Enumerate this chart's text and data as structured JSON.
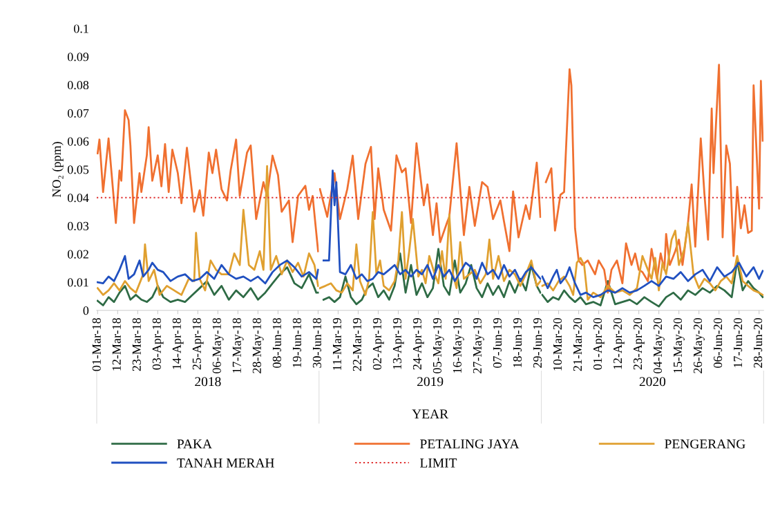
{
  "chart_data": [
    {
      "type": "line",
      "xlabel": "2018",
      "ylabel": "NO₂ (ppm)",
      "legend": "bottom",
      "grid": false,
      "xlim": [
        "2018-02-28T12:00",
        "2018-06-30T12:00"
      ],
      "ylim": [
        0,
        0.1
      ],
      "yticks": [
        0,
        0.01,
        0.02,
        0.03,
        0.04,
        0.05,
        0.06,
        0.07,
        0.08,
        0.09,
        0.1
      ],
      "xticks": [
        {
          "value": "2018-03-01",
          "label": "01-Mar-18"
        },
        {
          "value": "2018-03-12",
          "label": "12-Mar-18"
        },
        {
          "value": "2018-03-23",
          "label": "23-Mar-18"
        },
        {
          "value": "2018-04-03",
          "label": "03-Apr-18"
        },
        {
          "value": "2018-04-14",
          "label": "14-Apr-18"
        },
        {
          "value": "2018-04-25",
          "label": "25-Apr-18"
        },
        {
          "value": "2018-05-06",
          "label": "06-May-18"
        },
        {
          "value": "2018-05-17",
          "label": "17-May-18"
        },
        {
          "value": "2018-05-28",
          "label": "28-May-18"
        },
        {
          "value": "2018-06-08",
          "label": "08-Jun-18"
        },
        {
          "value": "2018-06-19",
          "label": "19-Jun-18"
        },
        {
          "value": "2018-06-30",
          "label": "30-Jun-18"
        }
      ],
      "ref_lines": [
        {
          "axis": "y",
          "value": 0.04,
          "label": "LIMIT",
          "color": "#e03030",
          "line_style": "dotted"
        }
      ],
      "series": [
        {
          "name": "PAKA",
          "color": "#2e6b45",
          "x": [
            "2018-03-01",
            "2018-03-04",
            "2018-03-07",
            "2018-03-10",
            "2018-03-13",
            "2018-03-16",
            "2018-03-19",
            "2018-03-22",
            "2018-03-25",
            "2018-03-28",
            "2018-03-31",
            "2018-04-03",
            "2018-04-06",
            "2018-04-10",
            "2018-04-14",
            "2018-04-18",
            "2018-04-22",
            "2018-04-26",
            "2018-04-30",
            "2018-05-04",
            "2018-05-08",
            "2018-05-12",
            "2018-05-16",
            "2018-05-20",
            "2018-05-24",
            "2018-05-28",
            "2018-06-01",
            "2018-06-05",
            "2018-06-09",
            "2018-06-13",
            "2018-06-17",
            "2018-06-21",
            "2018-06-25",
            "2018-06-29",
            "2018-06-30"
          ],
          "values": [
            0.0034,
            0.0018,
            0.0047,
            0.003,
            0.0063,
            0.0087,
            0.0038,
            0.0055,
            0.0038,
            0.003,
            0.0047,
            0.0087,
            0.0047,
            0.003,
            0.0038,
            0.003,
            0.0055,
            0.0079,
            0.0104,
            0.0055,
            0.0087,
            0.0038,
            0.0071,
            0.0047,
            0.0079,
            0.0038,
            0.0063,
            0.0096,
            0.0128,
            0.0153,
            0.0096,
            0.0079,
            0.0128,
            0.0063,
            0.0063
          ]
        },
        {
          "name": "PETALING JAYA",
          "color": "#f07030",
          "x": [
            "2018-03-01",
            "2018-03-02",
            "2018-03-04",
            "2018-03-07",
            "2018-03-11",
            "2018-03-13",
            "2018-03-14",
            "2018-03-16",
            "2018-03-18",
            "2018-03-19",
            "2018-03-21",
            "2018-03-24",
            "2018-03-25",
            "2018-03-28",
            "2018-03-29",
            "2018-03-31",
            "2018-04-03",
            "2018-04-05",
            "2018-04-07",
            "2018-04-09",
            "2018-04-11",
            "2018-04-14",
            "2018-04-16",
            "2018-04-19",
            "2018-04-23",
            "2018-04-26",
            "2018-04-28",
            "2018-05-01",
            "2018-05-03",
            "2018-05-05",
            "2018-05-08",
            "2018-05-11",
            "2018-05-13",
            "2018-05-16",
            "2018-05-18",
            "2018-05-22",
            "2018-05-24",
            "2018-05-27",
            "2018-05-28",
            "2018-05-31",
            "2018-06-02",
            "2018-06-05",
            "2018-06-08",
            "2018-06-10",
            "2018-06-14",
            "2018-06-16",
            "2018-06-19",
            "2018-06-23",
            "2018-06-25",
            "2018-06-27",
            "2018-06-30"
          ],
          "values": [
            0.0557,
            0.0606,
            0.042,
            0.061,
            0.031,
            0.0496,
            0.046,
            0.071,
            0.0675,
            0.0585,
            0.031,
            0.0487,
            0.042,
            0.055,
            0.065,
            0.046,
            0.055,
            0.044,
            0.059,
            0.042,
            0.057,
            0.0487,
            0.038,
            0.0577,
            0.035,
            0.0426,
            0.0336,
            0.056,
            0.0487,
            0.057,
            0.043,
            0.039,
            0.0496,
            0.0606,
            0.0406,
            0.056,
            0.0585,
            0.0324,
            0.0357,
            0.0455,
            0.0406,
            0.0549,
            0.048,
            0.035,
            0.039,
            0.0242,
            0.0406,
            0.0442,
            0.0357,
            0.0406,
            0.021
          ]
        },
        {
          "name": "PENGERANG",
          "color": "#e0a030",
          "x": [
            "2018-03-01",
            "2018-03-04",
            "2018-03-07",
            "2018-03-10",
            "2018-03-13",
            "2018-03-16",
            "2018-03-19",
            "2018-03-22",
            "2018-03-26",
            "2018-03-27",
            "2018-03-29",
            "2018-04-01",
            "2018-04-04",
            "2018-04-08",
            "2018-04-12",
            "2018-04-16",
            "2018-04-20",
            "2018-04-23",
            "2018-04-24",
            "2018-04-26",
            "2018-04-29",
            "2018-05-02",
            "2018-05-05",
            "2018-05-08",
            "2018-05-12",
            "2018-05-15",
            "2018-05-18",
            "2018-05-20",
            "2018-05-23",
            "2018-05-26",
            "2018-05-29",
            "2018-05-31",
            "2018-06-02",
            "2018-06-04",
            "2018-06-07",
            "2018-06-10",
            "2018-06-13",
            "2018-06-16",
            "2018-06-19",
            "2018-06-22",
            "2018-06-25",
            "2018-06-28",
            "2018-06-30"
          ],
          "values": [
            0.0079,
            0.0055,
            0.0071,
            0.0096,
            0.0071,
            0.0104,
            0.0079,
            0.0063,
            0.0128,
            0.0234,
            0.0104,
            0.0144,
            0.0055,
            0.0087,
            0.0071,
            0.0055,
            0.0112,
            0.0104,
            0.0275,
            0.0112,
            0.0071,
            0.0177,
            0.0144,
            0.0128,
            0.0128,
            0.0202,
            0.0161,
            0.0357,
            0.0161,
            0.0144,
            0.021,
            0.0144,
            0.0512,
            0.0144,
            0.0193,
            0.0128,
            0.0177,
            0.0136,
            0.0169,
            0.012,
            0.0202,
            0.0161,
            0.0087
          ]
        },
        {
          "name": "TANAH MERAH",
          "color": "#2050c0",
          "x": [
            "2018-03-01",
            "2018-03-04",
            "2018-03-07",
            "2018-03-10",
            "2018-03-13",
            "2018-03-16",
            "2018-03-18",
            "2018-03-21",
            "2018-03-24",
            "2018-03-26",
            "2018-03-29",
            "2018-03-31",
            "2018-04-03",
            "2018-04-06",
            "2018-04-10",
            "2018-04-14",
            "2018-04-18",
            "2018-04-22",
            "2018-04-26",
            "2018-04-30",
            "2018-05-04",
            "2018-05-08",
            "2018-05-12",
            "2018-05-16",
            "2018-05-20",
            "2018-05-24",
            "2018-05-28",
            "2018-06-01",
            "2018-06-05",
            "2018-06-09",
            "2018-06-13",
            "2018-06-17",
            "2018-06-21",
            "2018-06-25",
            "2018-06-29",
            "2018-06-30"
          ],
          "values": [
            0.01,
            0.0096,
            0.012,
            0.0104,
            0.0144,
            0.0193,
            0.0112,
            0.0128,
            0.0177,
            0.012,
            0.0144,
            0.0169,
            0.0144,
            0.0136,
            0.0104,
            0.012,
            0.0128,
            0.0104,
            0.0112,
            0.0136,
            0.0112,
            0.0161,
            0.0128,
            0.0112,
            0.012,
            0.0104,
            0.012,
            0.0096,
            0.0136,
            0.0161,
            0.0177,
            0.0153,
            0.012,
            0.0136,
            0.0112,
            0.0144
          ]
        }
      ]
    },
    {
      "type": "line",
      "xlabel": "2019",
      "tick_labels": "x",
      "grid": false,
      "annotations": [
        "YEAR"
      ],
      "xlim": [
        "2019-02-28T12:00",
        "2019-06-30T12:00"
      ],
      "ylim": [
        0,
        0.1
      ],
      "xticks": [
        {
          "value": "2019-03-11",
          "label": "11-Mar-19"
        },
        {
          "value": "2019-03-22",
          "label": "22-Mar-19"
        },
        {
          "value": "2019-04-02",
          "label": "02-Apr-19"
        },
        {
          "value": "2019-04-13",
          "label": "13-Apr-19"
        },
        {
          "value": "2019-04-24",
          "label": "24-Apr-19"
        },
        {
          "value": "2019-05-05",
          "label": "05-May-19"
        },
        {
          "value": "2019-05-16",
          "label": "16-May-19"
        },
        {
          "value": "2019-05-27",
          "label": "27-May-19"
        },
        {
          "value": "2019-06-07",
          "label": "07-Jun-19"
        },
        {
          "value": "2019-06-18",
          "label": "18-Jun-19"
        },
        {
          "value": "2019-06-29",
          "label": "29-Jun-19"
        }
      ],
      "ref_lines": [
        {
          "axis": "y",
          "value": 0.04,
          "color": "#e03030",
          "line_style": "dotted"
        }
      ],
      "series": [
        {
          "color": "#2e6b45",
          "x": [
            "2019-03-03",
            "2019-03-06",
            "2019-03-09",
            "2019-03-12",
            "2019-03-15",
            "2019-03-18",
            "2019-03-21",
            "2019-03-24",
            "2019-03-27",
            "2019-03-30",
            "2019-04-02",
            "2019-04-05",
            "2019-04-08",
            "2019-04-11",
            "2019-04-14",
            "2019-04-17",
            "2019-04-20",
            "2019-04-23",
            "2019-04-26",
            "2019-04-29",
            "2019-05-02",
            "2019-05-05",
            "2019-05-08",
            "2019-05-11",
            "2019-05-14",
            "2019-05-17",
            "2019-05-20",
            "2019-05-23",
            "2019-05-26",
            "2019-05-29",
            "2019-06-01",
            "2019-06-04",
            "2019-06-07",
            "2019-06-10",
            "2019-06-13",
            "2019-06-16",
            "2019-06-19",
            "2019-06-22",
            "2019-06-25",
            "2019-06-28",
            "2019-06-30"
          ],
          "values": [
            0.0038,
            0.0047,
            0.003,
            0.0047,
            0.012,
            0.0047,
            0.0022,
            0.0038,
            0.0079,
            0.0096,
            0.0047,
            0.0071,
            0.0038,
            0.0087,
            0.0202,
            0.0063,
            0.0161,
            0.0055,
            0.0096,
            0.0047,
            0.0079,
            0.0218,
            0.0087,
            0.0055,
            0.0177,
            0.0063,
            0.0096,
            0.0161,
            0.0079,
            0.0047,
            0.0096,
            0.0055,
            0.0087,
            0.0047,
            0.0104,
            0.0063,
            0.0112,
            0.0071,
            0.0161,
            0.0087,
            0.0063
          ]
        },
        {
          "color": "#f07030",
          "x": [
            "2019-03-01",
            "2019-03-05",
            "2019-03-09",
            "2019-03-12",
            "2019-03-16",
            "2019-03-19",
            "2019-03-22",
            "2019-03-26",
            "2019-03-29",
            "2019-03-31",
            "2019-04-02",
            "2019-04-05",
            "2019-04-09",
            "2019-04-12",
            "2019-04-15",
            "2019-04-17",
            "2019-04-20",
            "2019-04-23",
            "2019-04-27",
            "2019-04-29",
            "2019-05-02",
            "2019-05-04",
            "2019-05-06",
            "2019-05-10",
            "2019-05-11",
            "2019-05-15",
            "2019-05-19",
            "2019-05-22",
            "2019-05-25",
            "2019-05-29",
            "2019-06-01",
            "2019-06-04",
            "2019-06-08",
            "2019-06-10",
            "2019-06-13",
            "2019-06-15",
            "2019-06-18",
            "2019-06-22",
            "2019-06-24",
            "2019-06-28",
            "2019-06-30"
          ],
          "values": [
            0.043,
            0.0332,
            0.0487,
            0.0324,
            0.043,
            0.0549,
            0.0324,
            0.052,
            0.058,
            0.0324,
            0.0504,
            0.0357,
            0.0283,
            0.055,
            0.049,
            0.0504,
            0.031,
            0.0593,
            0.0373,
            0.0447,
            0.0267,
            0.038,
            0.0242,
            0.0316,
            0.0332,
            0.0593,
            0.0267,
            0.0438,
            0.03,
            0.0455,
            0.0438,
            0.0324,
            0.039,
            0.0316,
            0.021,
            0.0422,
            0.0259,
            0.0373,
            0.0324,
            0.0524,
            0.0332
          ]
        },
        {
          "color": "#e0a030",
          "x": [
            "2019-03-01",
            "2019-03-04",
            "2019-03-07",
            "2019-03-10",
            "2019-03-13",
            "2019-03-16",
            "2019-03-19",
            "2019-03-21",
            "2019-03-23",
            "2019-03-26",
            "2019-03-28",
            "2019-03-30",
            "2019-04-01",
            "2019-04-03",
            "2019-04-05",
            "2019-04-08",
            "2019-04-11",
            "2019-04-13",
            "2019-04-15",
            "2019-04-17",
            "2019-04-19",
            "2019-04-21",
            "2019-04-24",
            "2019-04-26",
            "2019-04-28",
            "2019-04-30",
            "2019-05-03",
            "2019-05-05",
            "2019-05-07",
            "2019-05-09",
            "2019-05-11",
            "2019-05-13",
            "2019-05-15",
            "2019-05-17",
            "2019-05-19",
            "2019-05-22",
            "2019-05-25",
            "2019-05-28",
            "2019-05-31",
            "2019-06-02",
            "2019-06-04",
            "2019-06-07",
            "2019-06-10",
            "2019-06-13",
            "2019-06-16",
            "2019-06-19",
            "2019-06-22",
            "2019-06-25",
            "2019-06-28",
            "2019-06-30"
          ],
          "values": [
            0.0079,
            0.0087,
            0.0096,
            0.0071,
            0.0063,
            0.0096,
            0.0071,
            0.0234,
            0.0104,
            0.0055,
            0.0112,
            0.0349,
            0.0128,
            0.0177,
            0.0087,
            0.0071,
            0.0104,
            0.0177,
            0.0349,
            0.0112,
            0.021,
            0.0324,
            0.012,
            0.0144,
            0.0096,
            0.0193,
            0.0128,
            0.0096,
            0.021,
            0.0112,
            0.034,
            0.0128,
            0.0079,
            0.0242,
            0.0112,
            0.0128,
            0.0144,
            0.0096,
            0.0128,
            0.0251,
            0.0112,
            0.0193,
            0.0104,
            0.0144,
            0.0128,
            0.0087,
            0.0128,
            0.0177,
            0.0087,
            0.0104
          ]
        },
        {
          "color": "#2050c0",
          "x": [
            "2019-03-03",
            "2019-03-06",
            "2019-03-08",
            "2019-03-09",
            "2019-03-10",
            "2019-03-12",
            "2019-03-15",
            "2019-03-18",
            "2019-03-21",
            "2019-03-24",
            "2019-03-27",
            "2019-03-30",
            "2019-04-02",
            "2019-04-05",
            "2019-04-08",
            "2019-04-11",
            "2019-04-14",
            "2019-04-17",
            "2019-04-20",
            "2019-04-23",
            "2019-04-26",
            "2019-04-29",
            "2019-05-02",
            "2019-05-05",
            "2019-05-08",
            "2019-05-11",
            "2019-05-14",
            "2019-05-17",
            "2019-05-20",
            "2019-05-23",
            "2019-05-26",
            "2019-05-29",
            "2019-06-01",
            "2019-06-04",
            "2019-06-07",
            "2019-06-10",
            "2019-06-13",
            "2019-06-16",
            "2019-06-19",
            "2019-06-22",
            "2019-06-25",
            "2019-06-28",
            "2019-06-30"
          ],
          "values": [
            0.0177,
            0.0177,
            0.0496,
            0.0373,
            0.0455,
            0.0136,
            0.0128,
            0.0161,
            0.0112,
            0.0128,
            0.0104,
            0.0112,
            0.0136,
            0.0128,
            0.0144,
            0.0161,
            0.0128,
            0.0144,
            0.012,
            0.0144,
            0.0128,
            0.0161,
            0.0112,
            0.0161,
            0.012,
            0.0144,
            0.0104,
            0.0136,
            0.0169,
            0.0153,
            0.0112,
            0.0169,
            0.0128,
            0.0144,
            0.0112,
            0.0161,
            0.012,
            0.0144,
            0.0104,
            0.0136,
            0.0153,
            0.0128,
            0.0112
          ]
        }
      ]
    },
    {
      "type": "line",
      "xlabel": "2020",
      "tick_labels": "x",
      "grid": false,
      "xlim": [
        "2020-02-29T12:00",
        "2020-06-30T12:00"
      ],
      "ylim": [
        0,
        0.1
      ],
      "xticks": [
        {
          "value": "2020-03-10",
          "label": "10-Mar-20"
        },
        {
          "value": "2020-03-21",
          "label": "21-Mar-20"
        },
        {
          "value": "2020-04-01",
          "label": "01-Apr-20"
        },
        {
          "value": "2020-04-12",
          "label": "12-Apr-20"
        },
        {
          "value": "2020-04-23",
          "label": "23-Apr-20"
        },
        {
          "value": "2020-05-04",
          "label": "04-May-20"
        },
        {
          "value": "2020-05-15",
          "label": "15-May-20"
        },
        {
          "value": "2020-05-26",
          "label": "26-May-20"
        },
        {
          "value": "2020-06-06",
          "label": "06-Jun-20"
        },
        {
          "value": "2020-06-17",
          "label": "17-Jun-20"
        },
        {
          "value": "2020-06-28",
          "label": "28-Jun-20"
        }
      ],
      "ref_lines": [
        {
          "axis": "y",
          "value": 0.04,
          "color": "#e03030",
          "line_style": "dotted"
        }
      ],
      "series": [
        {
          "color": "#2e6b45",
          "x": [
            "2020-03-01",
            "2020-03-04",
            "2020-03-07",
            "2020-03-10",
            "2020-03-13",
            "2020-03-16",
            "2020-03-19",
            "2020-03-22",
            "2020-03-25",
            "2020-03-29",
            "2020-04-02",
            "2020-04-06",
            "2020-04-10",
            "2020-04-14",
            "2020-04-18",
            "2020-04-22",
            "2020-04-26",
            "2020-04-30",
            "2020-05-04",
            "2020-05-08",
            "2020-05-12",
            "2020-05-16",
            "2020-05-20",
            "2020-05-24",
            "2020-05-28",
            "2020-06-01",
            "2020-06-05",
            "2020-06-09",
            "2020-06-13",
            "2020-06-16",
            "2020-06-19",
            "2020-06-22",
            "2020-06-25",
            "2020-06-28",
            "2020-06-30"
          ],
          "values": [
            0.0055,
            0.003,
            0.0047,
            0.0038,
            0.0071,
            0.0047,
            0.003,
            0.0047,
            0.0022,
            0.003,
            0.0018,
            0.0104,
            0.0022,
            0.003,
            0.0038,
            0.0022,
            0.0047,
            0.003,
            0.0014,
            0.0047,
            0.0063,
            0.0038,
            0.0071,
            0.0055,
            0.0079,
            0.0063,
            0.0087,
            0.0071,
            0.0047,
            0.0177,
            0.0071,
            0.0104,
            0.0079,
            0.0063,
            0.0047
          ]
        },
        {
          "color": "#f07030",
          "x": [
            "2020-03-03",
            "2020-03-06",
            "2020-03-08",
            "2020-03-11",
            "2020-03-13",
            "2020-03-16",
            "2020-03-17",
            "2020-03-19",
            "2020-03-21",
            "2020-03-23",
            "2020-03-26",
            "2020-03-30",
            "2020-04-01",
            "2020-04-04",
            "2020-04-06",
            "2020-04-08",
            "2020-04-11",
            "2020-04-14",
            "2020-04-16",
            "2020-04-19",
            "2020-04-21",
            "2020-04-23",
            "2020-04-25",
            "2020-04-28",
            "2020-04-30",
            "2020-05-03",
            "2020-05-05",
            "2020-05-07",
            "2020-05-08",
            "2020-05-10",
            "2020-05-13",
            "2020-05-15",
            "2020-05-17",
            "2020-05-20",
            "2020-05-22",
            "2020-05-24",
            "2020-05-27",
            "2020-05-29",
            "2020-05-31",
            "2020-06-02",
            "2020-06-03",
            "2020-06-06",
            "2020-06-08",
            "2020-06-10",
            "2020-06-12",
            "2020-06-14",
            "2020-06-16",
            "2020-06-18",
            "2020-06-20",
            "2020-06-22",
            "2020-06-24",
            "2020-06-25",
            "2020-06-28",
            "2020-06-29",
            "2020-06-30"
          ],
          "values": [
            0.0455,
            0.0504,
            0.0283,
            0.041,
            0.042,
            0.0855,
            0.0798,
            0.0291,
            0.0177,
            0.0161,
            0.0177,
            0.0128,
            0.0177,
            0.0144,
            0.0063,
            0.0144,
            0.0177,
            0.0096,
            0.0238,
            0.0161,
            0.0202,
            0.0144,
            0.0136,
            0.0104,
            0.0218,
            0.0112,
            0.0202,
            0.0144,
            0.0271,
            0.0161,
            0.021,
            0.0251,
            0.0161,
            0.031,
            0.0447,
            0.0226,
            0.061,
            0.0414,
            0.0251,
            0.0716,
            0.0487,
            0.0871,
            0.0259,
            0.0585,
            0.052,
            0.0193,
            0.0438,
            0.0291,
            0.0373,
            0.0275,
            0.0283,
            0.0798,
            0.0361,
            0.0814,
            0.0602
          ]
        },
        {
          "color": "#e0a030",
          "x": [
            "2020-03-01",
            "2020-03-04",
            "2020-03-07",
            "2020-03-10",
            "2020-03-13",
            "2020-03-16",
            "2020-03-18",
            "2020-03-20",
            "2020-03-22",
            "2020-03-24",
            "2020-03-26",
            "2020-03-29",
            "2020-04-02",
            "2020-04-06",
            "2020-04-10",
            "2020-04-14",
            "2020-04-18",
            "2020-04-22",
            "2020-04-25",
            "2020-04-28",
            "2020-04-30",
            "2020-05-02",
            "2020-05-04",
            "2020-05-06",
            "2020-05-08",
            "2020-05-11",
            "2020-05-13",
            "2020-05-15",
            "2020-05-18",
            "2020-05-20",
            "2020-05-23",
            "2020-05-26",
            "2020-05-29",
            "2020-06-01",
            "2020-06-04",
            "2020-06-07",
            "2020-06-10",
            "2020-06-13",
            "2020-06-16",
            "2020-06-19",
            "2020-06-22",
            "2020-06-25",
            "2020-06-28",
            "2020-06-30"
          ],
          "values": [
            0.0087,
            0.0096,
            0.0071,
            0.0104,
            0.012,
            0.0087,
            0.0055,
            0.0169,
            0.0186,
            0.0161,
            0.0038,
            0.0063,
            0.0047,
            0.0087,
            0.0063,
            0.0071,
            0.0055,
            0.0079,
            0.0193,
            0.0144,
            0.0112,
            0.0186,
            0.0071,
            0.0169,
            0.0128,
            0.0251,
            0.0283,
            0.0161,
            0.0218,
            0.031,
            0.0128,
            0.0079,
            0.0112,
            0.0096,
            0.0071,
            0.0104,
            0.012,
            0.0096,
            0.0193,
            0.0104,
            0.0087,
            0.0071,
            0.0063,
            0.0055
          ]
        },
        {
          "color": "#2050c0",
          "x": [
            "2020-03-01",
            "2020-03-04",
            "2020-03-07",
            "2020-03-09",
            "2020-03-11",
            "2020-03-14",
            "2020-03-16",
            "2020-03-19",
            "2020-03-22",
            "2020-03-25",
            "2020-03-29",
            "2020-04-02",
            "2020-04-06",
            "2020-04-10",
            "2020-04-14",
            "2020-04-18",
            "2020-04-22",
            "2020-04-26",
            "2020-04-30",
            "2020-05-04",
            "2020-05-08",
            "2020-05-12",
            "2020-05-16",
            "2020-05-20",
            "2020-05-24",
            "2020-05-28",
            "2020-06-01",
            "2020-06-05",
            "2020-06-09",
            "2020-06-13",
            "2020-06-17",
            "2020-06-21",
            "2020-06-25",
            "2020-06-28",
            "2020-06-30"
          ],
          "values": [
            0.012,
            0.0079,
            0.012,
            0.0144,
            0.0096,
            0.012,
            0.0153,
            0.0096,
            0.0055,
            0.0063,
            0.0047,
            0.0055,
            0.0071,
            0.0063,
            0.0079,
            0.0063,
            0.0071,
            0.0087,
            0.0104,
            0.0087,
            0.012,
            0.0112,
            0.0136,
            0.0104,
            0.0128,
            0.0144,
            0.0104,
            0.0153,
            0.012,
            0.0136,
            0.0169,
            0.012,
            0.0153,
            0.0112,
            0.014
          ]
        }
      ]
    }
  ]
}
